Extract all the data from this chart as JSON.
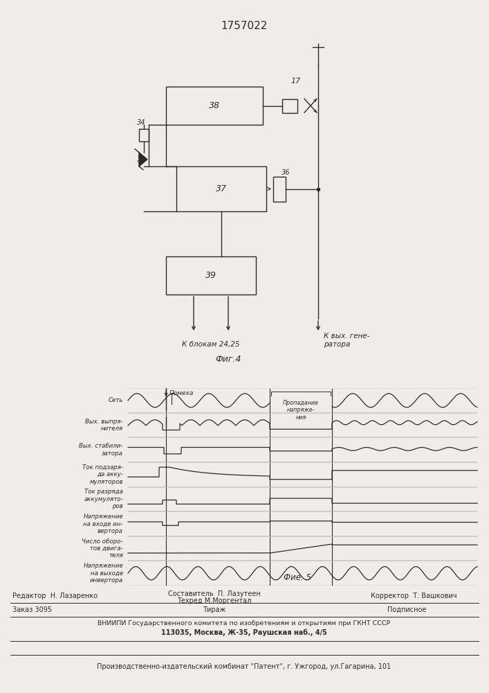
{
  "title": "1757022",
  "fig4_label": "Фиг.4",
  "fig5_label": "Фие. 5",
  "bg_color": "#f0ede8",
  "line_color": "#2a2a2a",
  "footer": {
    "editor": "Редактор  Н. Лазаренко",
    "compiler": "Составитель  П. Лазутеен",
    "techred": "Техред М.Моргентал",
    "corrector": "Корректор  Т. Вашкович",
    "order": "Заказ 3095",
    "tirazh": "Тираж",
    "podpisnoe": "Подписное",
    "vniiipi": "ВНИИПИ Государственного комитета по изобретениям и открытиям при ГКНТ СССР",
    "address": "113035, Москва, Ж-35, Раушская наб., 4/5",
    "production": "Производственно-издательский комбинат \"Патент\", г. Ужгород, ул.Гагарина, 101"
  },
  "waveform_labels": [
    "Сеть",
    "Вых. выпря-\nнителя",
    "Вых. стабили-\nзатора",
    "Ток подзаря-\nда акку-\nмуляторов",
    "Ток разряда\nаккумулято-\nров",
    "Напряжение\nна входе ин-\nвертора",
    "Число оборо-\nтов двига-\nтеля",
    "Напряжение\nна выходе\nинвертора"
  ],
  "annotation_pomex": "Помеха",
  "annotation_prop": "Пропадание\nнапряже-\nния"
}
